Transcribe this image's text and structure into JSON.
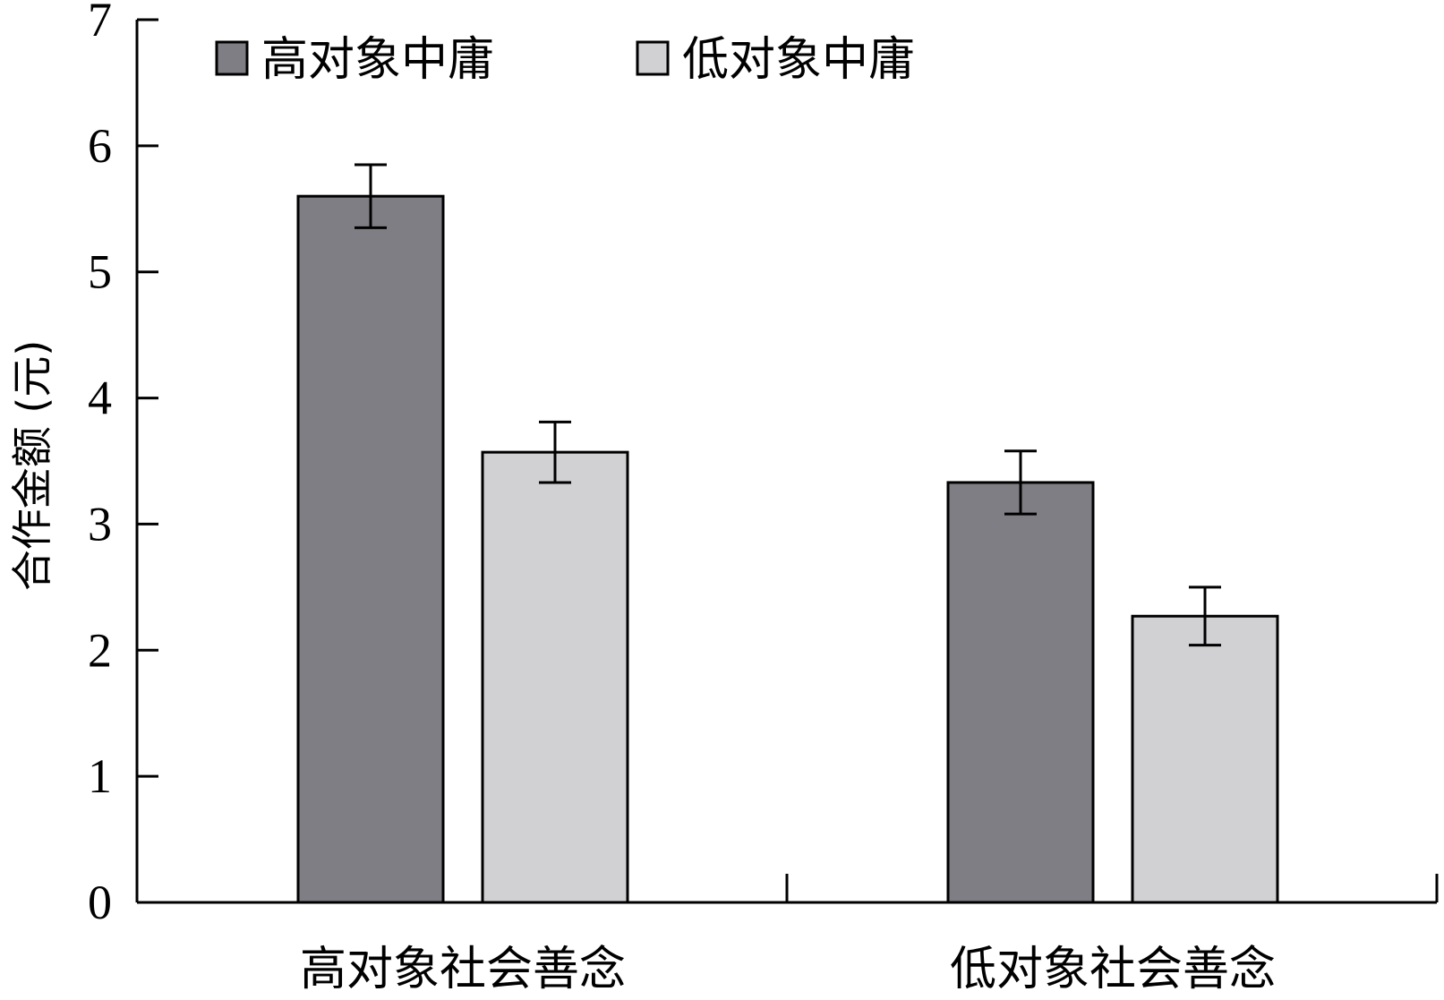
{
  "chart_data": {
    "type": "bar",
    "title": "",
    "xlabel": "",
    "ylabel": "合作金额 (元)",
    "ylim": [
      0,
      7
    ],
    "yticks": [
      0,
      1,
      2,
      3,
      4,
      5,
      6,
      7
    ],
    "grid": false,
    "legend_position": "top-left",
    "categories": [
      "高对象社会善念",
      "低对象社会善念"
    ],
    "series": [
      {
        "name": "高对象中庸",
        "color": "#7f7e84",
        "values": [
          5.6,
          3.33
        ],
        "errors": [
          0.25,
          0.25
        ]
      },
      {
        "name": "低对象中庸",
        "color": "#d1d1d3",
        "values": [
          3.57,
          2.27
        ],
        "errors": [
          0.24,
          0.23
        ]
      }
    ]
  }
}
